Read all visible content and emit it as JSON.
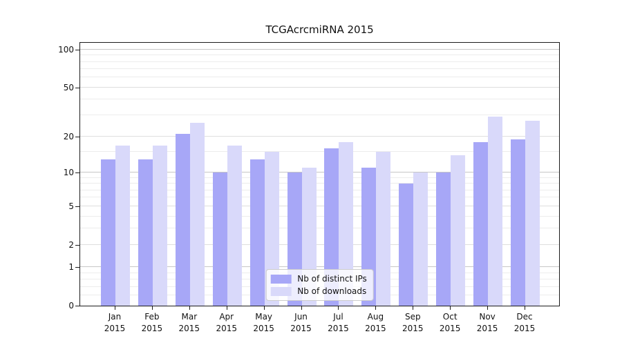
{
  "chart_data": {
    "type": "bar",
    "title": "TCGAcrcmiRNA 2015",
    "categories": [
      "Jan",
      "Feb",
      "Mar",
      "Apr",
      "May",
      "Jun",
      "Jul",
      "Aug",
      "Sep",
      "Oct",
      "Nov",
      "Dec"
    ],
    "x_second_line": "2015",
    "series": [
      {
        "name": "Nb of distinct IPs",
        "color": "#a7a7f7",
        "values": [
          13,
          13,
          21,
          10,
          13,
          10,
          16,
          11,
          8,
          10,
          18,
          19
        ]
      },
      {
        "name": "Nb of downloads",
        "color": "#d9d9fa",
        "values": [
          17,
          17,
          26,
          17,
          15,
          11,
          18,
          15,
          10,
          14,
          29,
          27
        ]
      }
    ],
    "xlabel": "",
    "ylabel": "",
    "y_axis": {
      "scale": "log1p",
      "labeled_ticks": [
        0,
        1,
        2,
        5,
        10,
        20,
        50,
        100
      ],
      "decade_ticks": [
        1,
        10,
        100
      ],
      "minor_ticks": [
        0.2,
        0.4,
        0.6,
        0.8,
        3,
        4,
        6,
        7,
        8,
        9,
        15,
        30,
        40,
        60,
        70,
        80,
        90
      ],
      "max_value": 113
    },
    "grid": true,
    "legend_position": "bottom-center"
  },
  "colors": {
    "bar_distinct_ips": "#a7a7f7",
    "bar_downloads": "#d9d9fa",
    "spine": "#1a1a1a",
    "decade_grid": "#c6c6c6",
    "major_grid": "#dedede",
    "minor_grid": "#ececec",
    "text": "#111111"
  }
}
